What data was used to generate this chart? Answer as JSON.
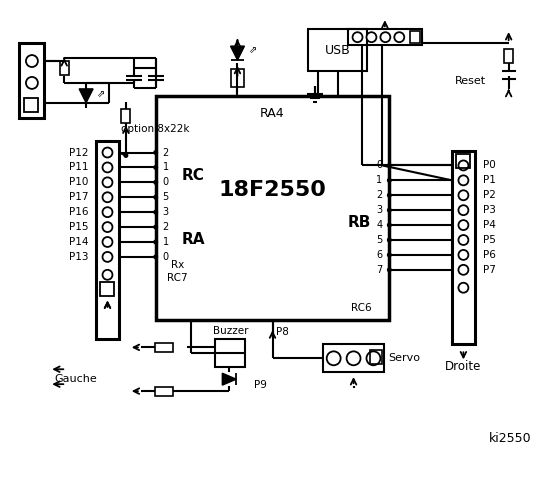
{
  "bg_color": "#ffffff",
  "chip_label": "18F2550",
  "chip_ra4": "RA4",
  "rc_label": "RC",
  "ra_label": "RA",
  "rb_label": "RB",
  "rx_label": "Rx",
  "rc7_label": "RC7",
  "rc6_label": "RC6",
  "left_port_labels": [
    "P12",
    "P11",
    "P10",
    "P17",
    "P16",
    "P15",
    "P14",
    "P13"
  ],
  "left_pin_labels": [
    "2",
    "1",
    "0",
    "5",
    "3",
    "2",
    "1",
    "0"
  ],
  "right_port_labels": [
    "P0",
    "P1",
    "P2",
    "P3",
    "P4",
    "P5",
    "P6",
    "P7"
  ],
  "right_pin_labels": [
    "0",
    "1",
    "2",
    "3",
    "4",
    "5",
    "6",
    "7"
  ],
  "gauche_label": "Gauche",
  "droite_label": "Droite",
  "buzzer_label": "Buzzer",
  "p9_label": "P9",
  "p8_label": "P8",
  "servo_label": "Servo",
  "reset_label": "Reset",
  "usb_label": "USB",
  "option_label": "option 8x22k",
  "title": "ki2550"
}
